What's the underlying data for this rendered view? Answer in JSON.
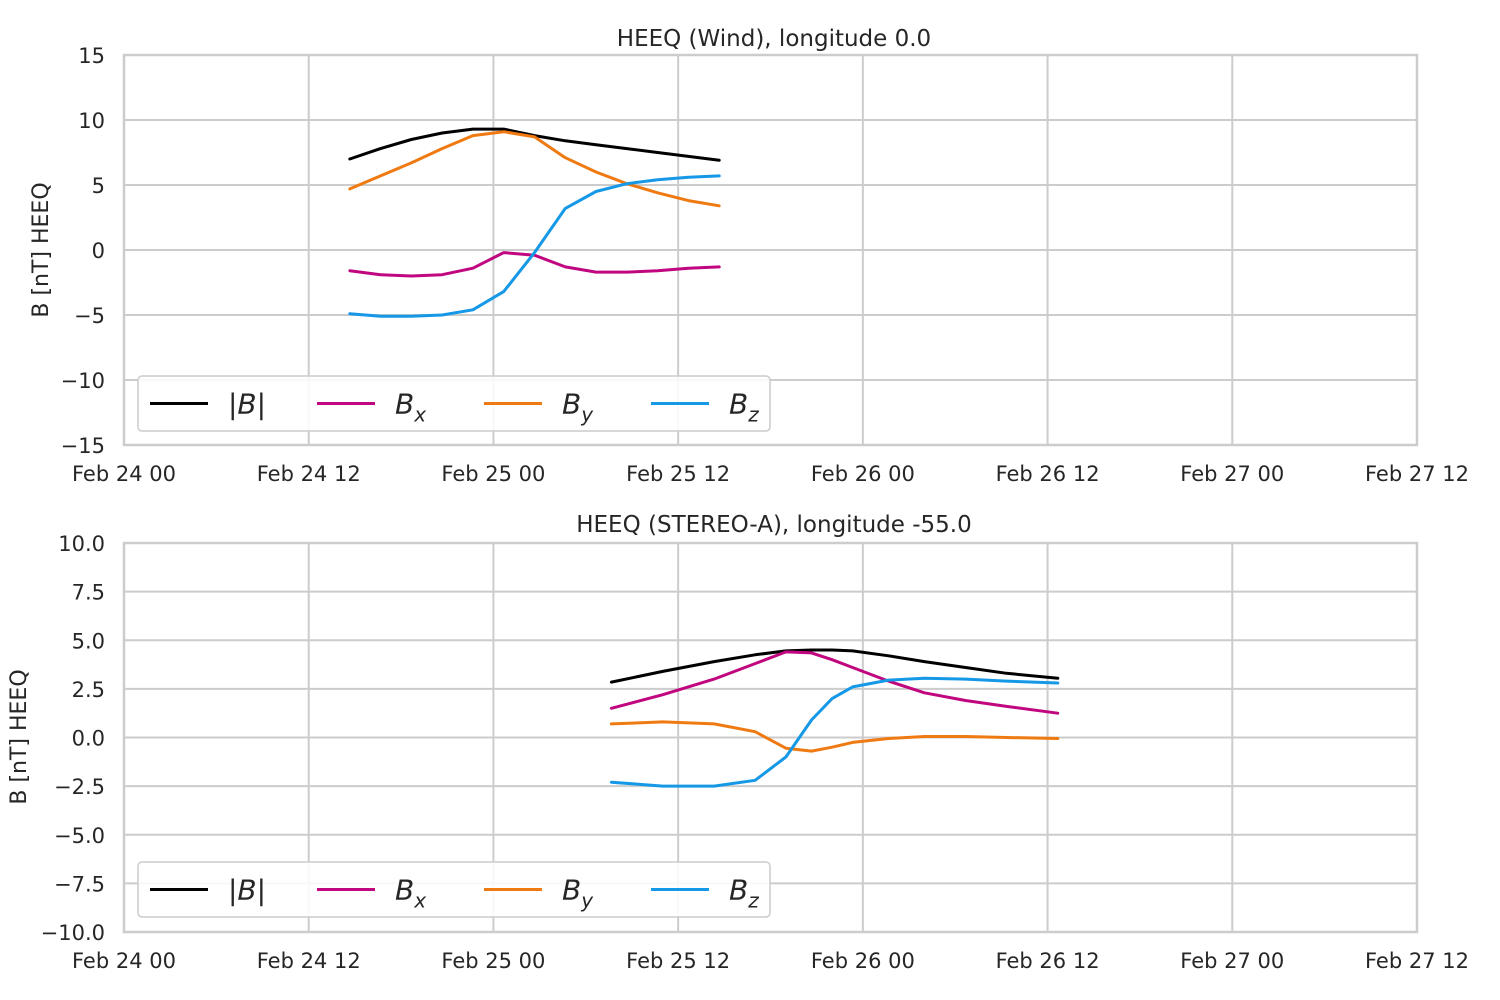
{
  "chart_data": [
    {
      "type": "line",
      "title": "HEEQ (Wind), longitude 0.0",
      "xlabel": "",
      "ylabel": "B [nT] HEEQ",
      "xlim": [
        "2022-02-24 00:00",
        "2022-02-27 12:00"
      ],
      "ylim": [
        -15,
        15
      ],
      "xtick_labels": [
        "Feb 24 00",
        "Feb 24 12",
        "Feb 25 00",
        "Feb 25 12",
        "Feb 26 00",
        "Feb 26 12",
        "Feb 27 00",
        "Feb 27 12"
      ],
      "ytick_labels": [
        "15",
        "10",
        "5",
        "0",
        "−5",
        "−10",
        "−15"
      ],
      "grid": true,
      "legend_position": "lower-left",
      "x": [
        "2022-02-24 14:40",
        "2022-02-24 16:40",
        "2022-02-24 18:40",
        "2022-02-24 20:40",
        "2022-02-24 22:40",
        "2022-02-25 00:40",
        "2022-02-25 02:40",
        "2022-02-25 04:40",
        "2022-02-25 06:40",
        "2022-02-25 08:40",
        "2022-02-25 10:40",
        "2022-02-25 12:40",
        "2022-02-25 14:40"
      ],
      "series": [
        {
          "name": "|B|",
          "color": "#000000",
          "values": [
            7.0,
            7.8,
            8.5,
            9.0,
            9.3,
            9.3,
            8.8,
            8.4,
            8.1,
            7.8,
            7.5,
            7.2,
            6.9
          ]
        },
        {
          "name": "Bx",
          "color": "#c0077f",
          "values": [
            -1.6,
            -1.9,
            -2.0,
            -1.9,
            -1.4,
            -0.2,
            -0.4,
            -1.3,
            -1.7,
            -1.7,
            -1.6,
            -1.4,
            -1.3
          ]
        },
        {
          "name": "By",
          "color": "#f07a12",
          "values": [
            4.7,
            5.7,
            6.7,
            7.8,
            8.8,
            9.1,
            8.7,
            7.1,
            6.0,
            5.1,
            4.4,
            3.8,
            3.4
          ]
        },
        {
          "name": "Bz",
          "color": "#1598e6",
          "values": [
            -4.9,
            -5.1,
            -5.1,
            -5.0,
            -4.6,
            -3.2,
            -0.2,
            3.2,
            4.5,
            5.1,
            5.4,
            5.6,
            5.7
          ]
        }
      ]
    },
    {
      "type": "line",
      "title": "HEEQ (STEREO-A), longitude -55.0",
      "xlabel": "",
      "ylabel": "B [nT] HEEQ",
      "xlim": [
        "2022-02-24 00:00",
        "2022-02-27 12:00"
      ],
      "ylim": [
        -10,
        10
      ],
      "xtick_labels": [
        "Feb 24 00",
        "Feb 24 12",
        "Feb 25 00",
        "Feb 25 12",
        "Feb 26 00",
        "Feb 26 12",
        "Feb 27 00",
        "Feb 27 12"
      ],
      "ytick_labels": [
        "10.0",
        "7.5",
        "5.0",
        "2.5",
        "0.0",
        "−2.5",
        "−5.0",
        "−7.5",
        "−10.0"
      ],
      "grid": true,
      "legend_position": "lower-left",
      "x": [
        "2022-02-25 07:40",
        "2022-02-25 11:00",
        "2022-02-25 14:20",
        "2022-02-25 17:00",
        "2022-02-25 19:00",
        "2022-02-25 20:40",
        "2022-02-25 22:00",
        "2022-02-25 23:20",
        "2022-02-26 01:40",
        "2022-02-26 04:00",
        "2022-02-26 06:40",
        "2022-02-26 09:20",
        "2022-02-26 12:40"
      ],
      "series": [
        {
          "name": "|B|",
          "color": "#000000",
          "values": [
            2.85,
            3.4,
            3.9,
            4.25,
            4.45,
            4.5,
            4.5,
            4.45,
            4.2,
            3.9,
            3.6,
            3.3,
            3.05
          ]
        },
        {
          "name": "Bx",
          "color": "#c0077f",
          "values": [
            1.5,
            2.2,
            3.0,
            3.8,
            4.4,
            4.35,
            4.0,
            3.6,
            2.9,
            2.3,
            1.9,
            1.6,
            1.25
          ]
        },
        {
          "name": "By",
          "color": "#f07a12",
          "values": [
            0.7,
            0.8,
            0.7,
            0.3,
            -0.55,
            -0.7,
            -0.5,
            -0.25,
            -0.05,
            0.05,
            0.05,
            0.0,
            -0.05
          ]
        },
        {
          "name": "Bz",
          "color": "#1598e6",
          "values": [
            -2.3,
            -2.5,
            -2.5,
            -2.2,
            -1.0,
            0.9,
            2.0,
            2.6,
            2.95,
            3.05,
            3.0,
            2.9,
            2.8
          ]
        }
      ]
    }
  ]
}
